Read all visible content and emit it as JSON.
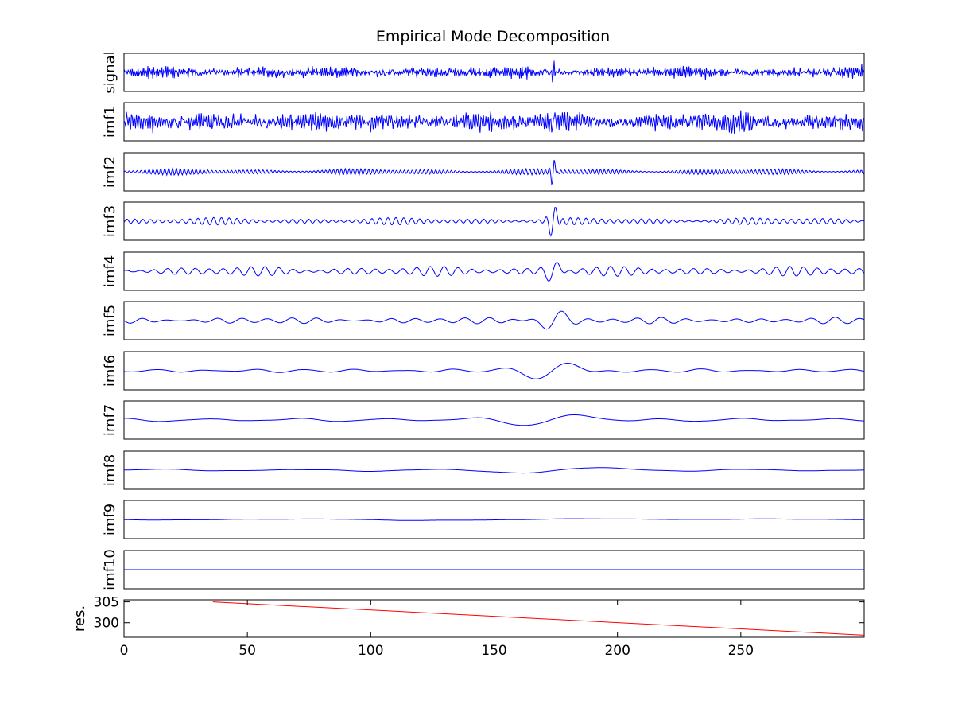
{
  "chart_data": {
    "type": "line",
    "title": "Empirical Mode Decomposition",
    "x_ticks": [
      0,
      50,
      100,
      150,
      200,
      250
    ],
    "xlim": [
      0,
      300
    ],
    "colors": {
      "imf": "#0000ff",
      "residual": "#ff0000",
      "frame": "#000000"
    },
    "panels": [
      {
        "label": "signal",
        "amp": 0.12,
        "noise": 1.0,
        "spike": 2.6,
        "burst_width": 0.4
      },
      {
        "label": "imf1",
        "amp": 0.2,
        "noise": 1.0,
        "spike": 1.8,
        "burst_width": 0.5
      },
      {
        "label": "imf2",
        "amp": 0.08,
        "noise": 1.0,
        "spike": 4.5,
        "burst_width": 0.8
      },
      {
        "label": "imf3",
        "amp": 0.09,
        "noise": 1.0,
        "spike": 4.0,
        "burst_width": 1.6
      },
      {
        "label": "imf4",
        "amp": 0.12,
        "noise": 1.0,
        "spike": 2.0,
        "burst_width": 2.8
      },
      {
        "label": "imf5",
        "amp": 0.08,
        "noise": 1.0,
        "spike": 3.0,
        "burst_width": 5.0
      },
      {
        "label": "imf6",
        "amp": 0.05,
        "noise": 1.0,
        "spike": 4.5,
        "burst_width": 10.0
      },
      {
        "label": "imf7",
        "amp": 0.05,
        "noise": 1.0,
        "spike": 2.5,
        "burst_width": 18.0
      },
      {
        "label": "imf8",
        "amp": 0.035,
        "noise": 1.0,
        "spike": 1.5,
        "burst_width": 30.0
      },
      {
        "label": "imf9",
        "amp": 0.02,
        "noise": 1.0,
        "spike": 1.0,
        "burst_width": 50.0
      },
      {
        "label": "imf10",
        "amp": 0.0,
        "noise": 0.0,
        "spike": 0.0,
        "burst_width": 0
      }
    ],
    "residual": {
      "label": "res.",
      "y_ticks": [
        300,
        305
      ],
      "ylim": [
        296.5,
        305.5
      ],
      "x": [
        36,
        300
      ],
      "y": [
        305,
        297
      ]
    }
  }
}
